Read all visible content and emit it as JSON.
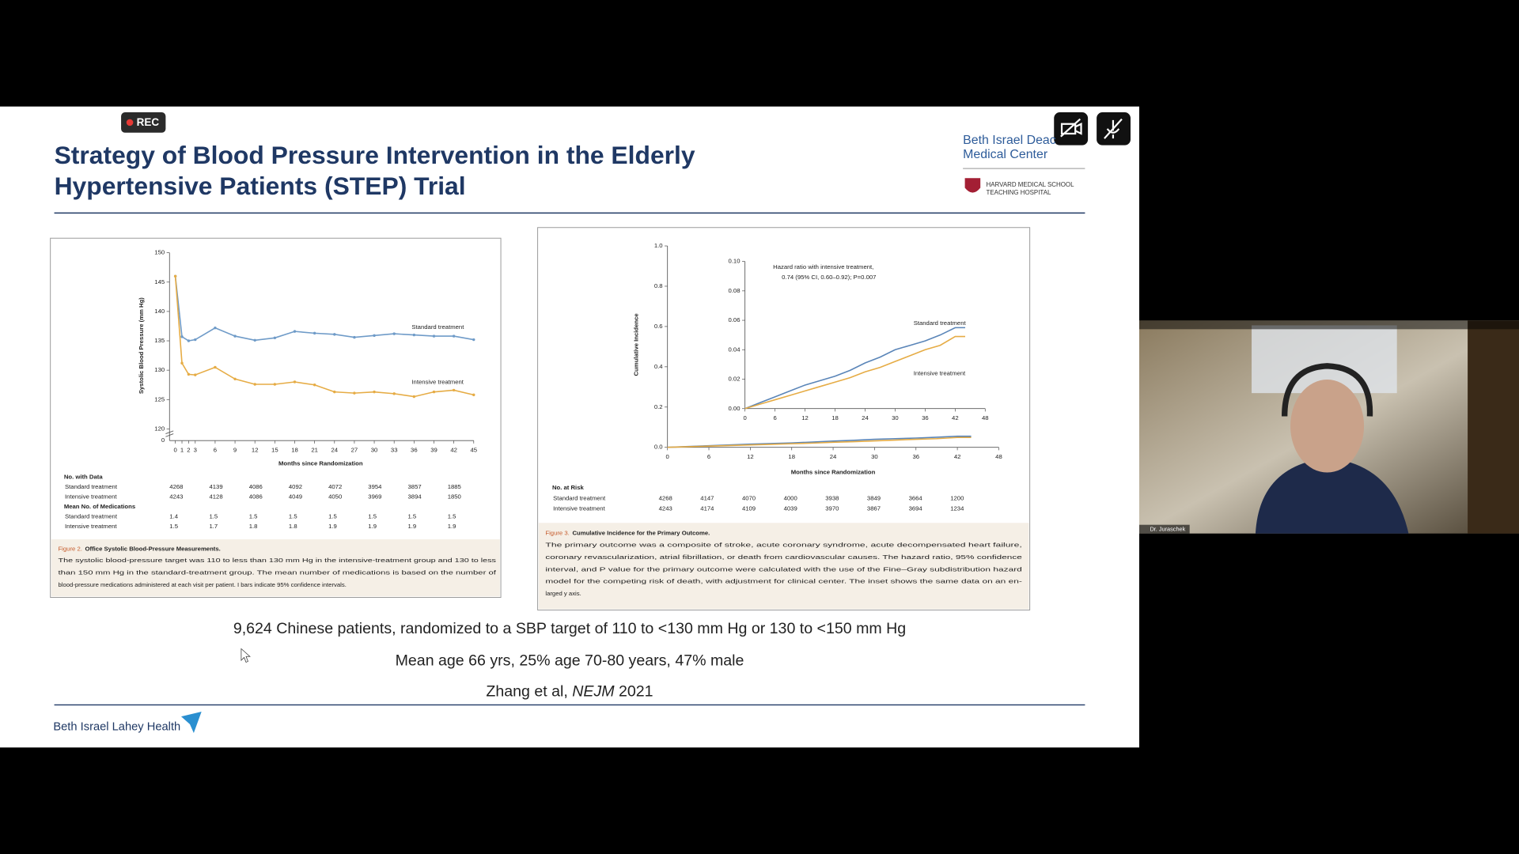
{
  "screen": {
    "rec": "REC",
    "participant_name": "Dr. Juraschek"
  },
  "slide": {
    "title_lines": [
      "Strategy of Blood Pressure Intervention in the Elderly",
      "Hypertensive Patients (STEP) Trial"
    ],
    "logo": {
      "lines": [
        "Beth Israel Deac",
        "Medical Center"
      ],
      "harvard_lines": [
        "HARVARD MEDICAL SCHOOL",
        "TEACHING HOSPITAL"
      ]
    },
    "bullets": [
      "9,624 Chinese patients, randomized to a SBP target of 110 to <130 mm Hg or 130 to <150 mm Hg",
      "Mean age 66 yrs, 25% age 70-80 years, 47% male"
    ],
    "citation": {
      "before": "Zhang et al, ",
      "journal": "NEJM",
      "after": " 2021"
    },
    "footer_logo": "Beth Israel Lahey Health"
  },
  "chart_data": [
    {
      "type": "line",
      "x_label": "Months since Randomization",
      "y_label": "Systolic Blood Pressure (mm Hg)",
      "x": [
        0,
        1,
        2,
        3,
        6,
        9,
        12,
        15,
        18,
        21,
        24,
        27,
        30,
        33,
        36,
        39,
        42,
        45
      ],
      "xlim": [
        0,
        45
      ],
      "xticks": [
        0,
        1,
        2,
        3,
        6,
        9,
        12,
        15,
        18,
        21,
        24,
        27,
        30,
        33,
        36,
        39,
        42,
        45
      ],
      "ylim": [
        120,
        150
      ],
      "yticks": [
        120,
        125,
        130,
        135,
        140,
        145,
        150
      ],
      "y_break_label": "0",
      "series": [
        {
          "name": "Standard treatment",
          "color": "#6f9bc8",
          "values": [
            146,
            135.7,
            135,
            135.2,
            137.2,
            135.8,
            135.1,
            135.5,
            136.6,
            136.3,
            136.1,
            135.6,
            135.9,
            136.2,
            136,
            135.8,
            135.8,
            135.2
          ]
        },
        {
          "name": "Intensive treatment",
          "color": "#e6ac45",
          "values": [
            146,
            131.2,
            129.3,
            129.2,
            130.5,
            128.5,
            127.6,
            127.6,
            128,
            127.5,
            126.3,
            126.1,
            126.3,
            126,
            125.5,
            126.3,
            126.6,
            125.8
          ]
        }
      ],
      "table": [
        {
          "title": "No. with Data",
          "rows": [
            {
              "label": "Standard treatment",
              "values": [
                4268,
                4139,
                4086,
                4092,
                4072,
                3954,
                3857,
                1885
              ]
            },
            {
              "label": "Intensive treatment",
              "values": [
                4243,
                4128,
                4086,
                4049,
                4050,
                3969,
                3894,
                1850
              ]
            }
          ]
        },
        {
          "title": "Mean No. of Medications",
          "rows": [
            {
              "label": "Standard treatment",
              "values": [
                1.4,
                1.5,
                1.5,
                1.5,
                1.5,
                1.5,
                1.5,
                1.5
              ]
            },
            {
              "label": "Intensive treatment",
              "values": [
                1.5,
                1.7,
                1.8,
                1.8,
                1.9,
                1.9,
                1.9,
                1.9
              ]
            }
          ]
        }
      ],
      "caption": {
        "label": "Figure 2.",
        "title": "Office Systolic Blood-Pressure Measurements.",
        "lines": [
          "The systolic blood-pressure target was 110 to less than 130 mm Hg in the intensive-treatment group and 130 to less",
          "than 150 mm Hg in the standard-treatment group. The mean number of medications is based on the number of",
          "blood-pressure medications administered at each visit per patient. I bars indicate 95% confidence intervals."
        ]
      }
    },
    {
      "type": "line",
      "x_label": "Months since Randomization",
      "y_label": "Cumulative Incidence",
      "x": [
        0,
        3,
        6,
        9,
        12,
        15,
        18,
        21,
        24,
        27,
        30,
        33,
        36,
        39,
        42,
        44
      ],
      "xlim": [
        0,
        48
      ],
      "xticks": [
        0,
        6,
        12,
        18,
        24,
        30,
        36,
        42,
        48
      ],
      "ylim": [
        0,
        1
      ],
      "yticks": [
        {
          "value": 0,
          "label": "0.0"
        },
        0.2,
        0.4,
        0.6,
        0.8,
        {
          "value": 1,
          "label": "1.0"
        }
      ],
      "series": [
        {
          "name": "Standard treatment",
          "color": "#5a85b8",
          "values": [
            0,
            0.004,
            0.008,
            0.012,
            0.016,
            0.019,
            0.022,
            0.026,
            0.031,
            0.035,
            0.04,
            0.043,
            0.046,
            0.05,
            0.055,
            0.055
          ]
        },
        {
          "name": "Intensive treatment",
          "color": "#e6ac45",
          "values": [
            0,
            0.003,
            0.006,
            0.009,
            0.012,
            0.015,
            0.018,
            0.021,
            0.025,
            0.028,
            0.032,
            0.036,
            0.04,
            0.043,
            0.049,
            0.049
          ]
        }
      ],
      "inset": {
        "xlim": [
          0,
          48
        ],
        "xticks": [
          0,
          6,
          12,
          18,
          24,
          30,
          36,
          42,
          48
        ],
        "ylim": [
          0,
          0.1
        ],
        "yticks": [
          {
            "value": 0,
            "label": "0.00"
          },
          {
            "value": 0.02,
            "label": "0.02"
          },
          {
            "value": 0.04,
            "label": "0.04"
          },
          {
            "value": 0.06,
            "label": "0.06"
          },
          {
            "value": 0.08,
            "label": "0.08"
          },
          {
            "value": 0.1,
            "label": "0.10"
          }
        ],
        "annotation_lines": [
          "Hazard ratio with intensive treatment,",
          "0.74 (95% CI, 0.60–0.92); P=0.007"
        ]
      },
      "table": [
        {
          "title": "No. at Risk",
          "rows": [
            {
              "label": "Standard treatment",
              "values": [
                4268,
                4147,
                4070,
                4000,
                3938,
                3849,
                3664,
                1200
              ]
            },
            {
              "label": "Intensive treatment",
              "values": [
                4243,
                4174,
                4109,
                4039,
                3970,
                3867,
                3694,
                1234
              ]
            }
          ]
        }
      ],
      "caption": {
        "label": "Figure 3.",
        "title": "Cumulative Incidence for the Primary Outcome.",
        "lines": [
          "The primary outcome was a composite of stroke, acute coronary syndrome, acute decompensated heart failure,",
          "coronary revascularization, atrial fibrillation, or death from cardiovascular causes. The hazard ratio, 95% confidence",
          "interval, and P value for the primary outcome were calculated with the use of the Fine–Gray subdistribution hazard",
          "model for the competing risk of death, with adjustment for clinical center. The inset shows the same data on an en-",
          "larged y axis."
        ]
      }
    }
  ]
}
